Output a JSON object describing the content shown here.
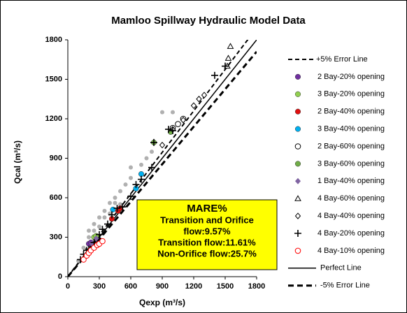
{
  "chart_data": {
    "type": "scatter",
    "title": "Mamloo Spillway Hydraulic Model Data",
    "x_label": "Qexp (m³/s)",
    "y_label": "Qcal (m³/s)",
    "xlim": [
      0,
      1800
    ],
    "ylim": [
      0,
      1800
    ],
    "xticks": [
      0,
      300,
      600,
      900,
      1200,
      1500,
      1800
    ],
    "yticks": [
      0,
      300,
      600,
      900,
      1200,
      1500,
      1800
    ],
    "annotation": {
      "title": "MARE%",
      "lines": [
        "Transition and Orifice",
        "flow:9.57%",
        "Transition flow:11.61%",
        "Non-Orifice flow:25.7%"
      ]
    },
    "lines": [
      {
        "name": "+5% Error Line",
        "slope": 1.05,
        "dash": "6,4",
        "width": 2
      },
      {
        "name": "Perfect Line",
        "slope": 1,
        "dash": "none",
        "width": 1.5
      },
      {
        "name": "-5% Error Line",
        "slope": 0.95,
        "dash": "8,5",
        "width": 3
      }
    ],
    "series": [
      {
        "color": "#b0b0b0",
        "marker": "dot",
        "x": [
          100,
          150,
          200,
          250,
          300,
          350,
          400,
          450,
          500,
          550,
          600,
          700,
          800,
          900,
          1000,
          200,
          300,
          400,
          500,
          250,
          350,
          450,
          600,
          750
        ],
        "y": [
          120,
          220,
          300,
          350,
          380,
          450,
          560,
          600,
          650,
          700,
          750,
          850,
          950,
          1250,
          1250,
          350,
          450,
          480,
          550,
          400,
          500,
          560,
          830,
          900
        ]
      },
      {
        "name": "2 Bay-20% opening",
        "color": "#7030a0",
        "marker": "circle",
        "x": [
          200,
          220
        ],
        "y": [
          250,
          260
        ]
      },
      {
        "name": "3 Bay-20% opening",
        "color": "#92d050",
        "marker": "circle",
        "x": [
          250,
          270
        ],
        "y": [
          300,
          310
        ]
      },
      {
        "name": "2 Bay-40% opening",
        "color": "#e01010",
        "marker": "circle",
        "x": [
          420,
          480,
          500
        ],
        "y": [
          440,
          500,
          520
        ]
      },
      {
        "name": "3 Bay-40% opening",
        "color": "#00b0f0",
        "marker": "circle",
        "x": [
          430,
          650,
          700
        ],
        "y": [
          510,
          670,
          780
        ]
      },
      {
        "name": "2 Bay-60% opening",
        "color": "#000000",
        "marker": "open-circle",
        "x": [
          1000,
          1050,
          1100
        ],
        "y": [
          1130,
          1160,
          1200
        ]
      },
      {
        "name": "3 Bay-60% opening",
        "color": "#70ad47",
        "marker": "circle",
        "x": [
          820,
          980
        ],
        "y": [
          1020,
          1100
        ]
      },
      {
        "name": "1 Bay-40% opening",
        "color": "#8064a2",
        "marker": "diamond",
        "x": [
          230,
          270
        ],
        "y": [
          250,
          290
        ]
      },
      {
        "name": "4 Bay-60% opening",
        "color": "#000000",
        "marker": "triangle",
        "x": [
          1520,
          1530,
          1550
        ],
        "y": [
          1600,
          1660,
          1750
        ]
      },
      {
        "name": "4 Bay-40% opening",
        "color": "#000000",
        "marker": "open-diamond",
        "x": [
          900,
          1000,
          1100,
          1200,
          1250,
          1300
        ],
        "y": [
          1000,
          1120,
          1190,
          1300,
          1350,
          1380
        ]
      },
      {
        "name": "4 Bay-20% opening",
        "color": "#000000",
        "marker": "plus",
        "x": [
          120,
          150,
          180,
          200,
          250,
          300,
          330,
          380,
          420,
          470,
          520,
          600,
          650,
          700,
          800,
          820,
          960,
          1000,
          1400,
          1500
        ],
        "y": [
          130,
          170,
          200,
          210,
          260,
          320,
          360,
          400,
          470,
          520,
          530,
          610,
          700,
          740,
          830,
          1020,
          1120,
          1110,
          1530,
          1600
        ]
      },
      {
        "name": "4 Bay-10% opening",
        "color": "#ff0000",
        "marker": "open-circle",
        "x": [
          150,
          180,
          200,
          220,
          250,
          280,
          300,
          330
        ],
        "y": [
          130,
          160,
          180,
          200,
          220,
          240,
          250,
          270
        ]
      }
    ]
  }
}
